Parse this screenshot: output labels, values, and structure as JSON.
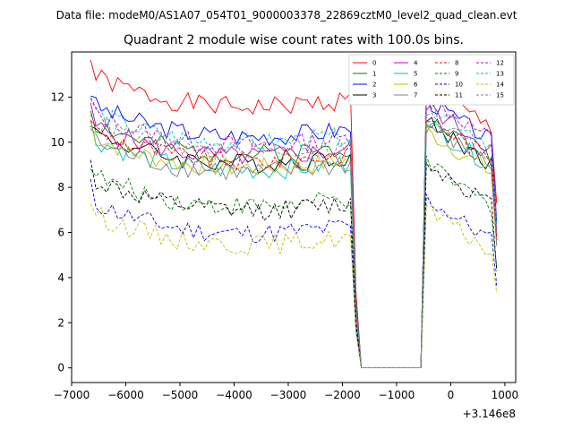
{
  "chart_data": {
    "type": "line",
    "suptitle": "Data file: modeM0/AS1A07_054T01_9000003378_22869cztM0_level2_quad_clean.evt",
    "title": "Quadrant 2 module wise count rates with 100.0s bins.",
    "xlabel": "",
    "ylabel": "",
    "x_offset_label": "+3.146e8",
    "xlim": [
      -7000,
      1200
    ],
    "ylim": [
      -0.65,
      14.0
    ],
    "xticks": [
      -7000,
      -6000,
      -5000,
      -4000,
      -3000,
      -2000,
      -1000,
      0,
      1000
    ],
    "xtick_labels": [
      "−7000",
      "−6000",
      "−5000",
      "−4000",
      "−3000",
      "−2000",
      "−1000",
      "0",
      "1000"
    ],
    "yticks": [
      0,
      2,
      4,
      6,
      8,
      10,
      12
    ],
    "ytick_labels": [
      "0",
      "2",
      "4",
      "6",
      "8",
      "10",
      "12"
    ],
    "grid": false,
    "legend_position": "top-right",
    "legend_columns": 4,
    "segments": [
      {
        "start": -6650,
        "end": -1850,
        "step": 100
      },
      {
        "start": -1750,
        "end": -550,
        "step": 100
      },
      {
        "start": -450,
        "end": 850,
        "step": 100
      }
    ],
    "series": [
      {
        "name": "0",
        "color": "#ff0000",
        "dash": "solid",
        "base": 11.2,
        "curve": "u",
        "post": 12.0,
        "seed": 1
      },
      {
        "name": "1",
        "color": "#008000",
        "dash": "solid",
        "base": 9.1,
        "curve": "u",
        "post": 10.6,
        "seed": 2
      },
      {
        "name": "2",
        "color": "#0000ff",
        "dash": "solid",
        "base": 9.9,
        "curve": "u",
        "post": 11.4,
        "seed": 3
      },
      {
        "name": "3",
        "color": "#000000",
        "dash": "solid",
        "base": 8.7,
        "curve": "u",
        "post": 10.4,
        "seed": 4
      },
      {
        "name": "4",
        "color": "#bf00bf",
        "dash": "solid",
        "base": 9.0,
        "curve": "u",
        "post": 11.1,
        "seed": 5
      },
      {
        "name": "5",
        "color": "#00bfbf",
        "dash": "solid",
        "base": 8.4,
        "curve": "u",
        "post": 10.3,
        "seed": 6
      },
      {
        "name": "6",
        "color": "#bfbf00",
        "dash": "solid",
        "base": 8.5,
        "curve": "u",
        "post": 10.0,
        "seed": 7
      },
      {
        "name": "7",
        "color": "#808080",
        "dash": "solid",
        "base": 8.3,
        "curve": "u",
        "post": 10.3,
        "seed": 8
      },
      {
        "name": "8",
        "color": "#ff0000",
        "dash": "dashed",
        "base": 8.8,
        "curve": "u",
        "post": 10.6,
        "seed": 9
      },
      {
        "name": "9",
        "color": "#008000",
        "dash": "dashed",
        "base": 6.8,
        "curve": "u",
        "post": 8.5,
        "seed": 10
      },
      {
        "name": "10",
        "color": "#0000ff",
        "dash": "dashed",
        "base": 5.6,
        "curve": "u",
        "post": 7.0,
        "seed": 11
      },
      {
        "name": "11",
        "color": "#000000",
        "dash": "dashed",
        "base": 6.6,
        "curve": "u",
        "post": 8.6,
        "seed": 12
      },
      {
        "name": "12",
        "color": "#bf00bf",
        "dash": "dashed",
        "base": 9.5,
        "curve": "u",
        "post": 11.5,
        "seed": 13
      },
      {
        "name": "13",
        "color": "#00bfbf",
        "dash": "dashed",
        "base": 9.6,
        "curve": "u",
        "post": 11.3,
        "seed": 14
      },
      {
        "name": "14",
        "color": "#bfbf00",
        "dash": "dashed",
        "base": 5.1,
        "curve": "u",
        "post": 6.5,
        "seed": 15
      },
      {
        "name": "15",
        "color": "#808080",
        "dash": "dashed",
        "base": 9.2,
        "curve": "u",
        "post": 10.7,
        "seed": 16
      }
    ]
  }
}
